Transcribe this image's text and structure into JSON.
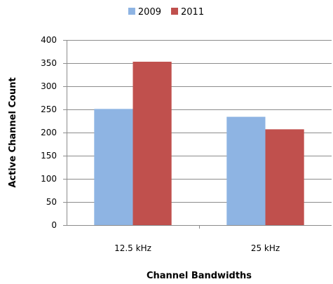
{
  "chart_data": {
    "type": "bar",
    "title": "",
    "xlabel": "Channel Bandwidths",
    "ylabel": "Active Channel Count",
    "categories": [
      "12.5 kHz",
      "25 kHz"
    ],
    "series": [
      {
        "name": "2009",
        "values": [
          251,
          234
        ],
        "color": "#8EB4E3"
      },
      {
        "name": "2011",
        "values": [
          353,
          207
        ],
        "color": "#C0504D"
      }
    ],
    "ylim": [
      0,
      400
    ],
    "yticks": [
      0,
      50,
      100,
      150,
      200,
      250,
      300,
      350,
      400
    ],
    "grid": true,
    "legend_position": "top"
  }
}
